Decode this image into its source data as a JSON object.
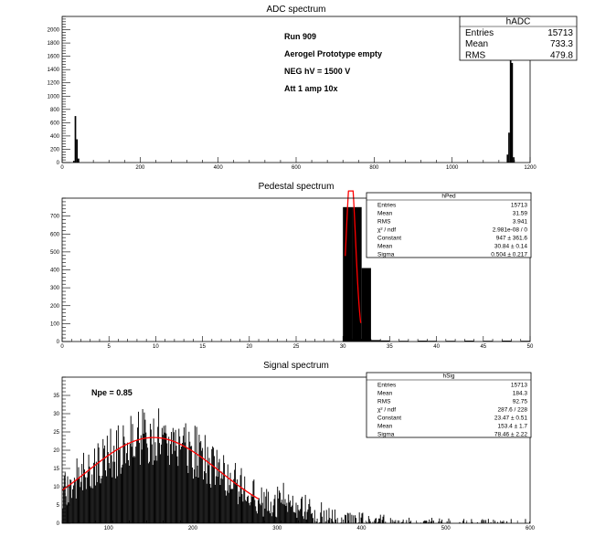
{
  "chart_data": [
    {
      "type": "bar",
      "title": "ADC spectrum",
      "xlim": [
        0,
        1200
      ],
      "ylim": [
        0,
        2200
      ],
      "xticks": [
        0,
        200,
        400,
        600,
        800,
        1000,
        1200
      ],
      "yticks": [
        0,
        200,
        400,
        600,
        800,
        1000,
        1200,
        1400,
        1600,
        1800,
        2000
      ],
      "bin_width": 4,
      "bins": [
        [
          28,
          25
        ],
        [
          32,
          700
        ],
        [
          36,
          350
        ],
        [
          40,
          60
        ],
        [
          1140,
          120
        ],
        [
          1144,
          450
        ],
        [
          1148,
          2150
        ],
        [
          1152,
          1500
        ],
        [
          1156,
          80
        ]
      ],
      "stats": {
        "name": "hADC",
        "rows": [
          {
            "label": "Entries",
            "value": "15713"
          },
          {
            "label": "Mean",
            "value": "733.3"
          },
          {
            "label": "RMS",
            "value": "479.8"
          }
        ]
      },
      "annotations": [
        "Run  909",
        "Aerogel Prototype empty",
        "NEG hV = 1500 V",
        "Att 1 amp 10x"
      ]
    },
    {
      "type": "bar",
      "title": "Pedestal spectrum",
      "xlim": [
        0,
        50
      ],
      "ylim": [
        0,
        800
      ],
      "xticks": [
        0,
        5,
        10,
        15,
        20,
        25,
        30,
        35,
        40,
        45,
        50
      ],
      "yticks": [
        0,
        100,
        200,
        300,
        400,
        500,
        600,
        700
      ],
      "bin_width": 1,
      "bins": [
        [
          30,
          750
        ],
        [
          31,
          750
        ],
        [
          32,
          410
        ],
        [
          33,
          8
        ],
        [
          34,
          6
        ],
        [
          36,
          4
        ],
        [
          38,
          5
        ],
        [
          39,
          4
        ],
        [
          41,
          4
        ],
        [
          43,
          5
        ],
        [
          45,
          4
        ],
        [
          47,
          5
        ],
        [
          49,
          4
        ]
      ],
      "fit": {
        "type": "gaus",
        "constant": 947,
        "mean": 30.84,
        "sigma": 0.504,
        "x_range": [
          30.25,
          31.9
        ]
      },
      "stats": {
        "name": "hPed",
        "rows": [
          {
            "label": "Entries",
            "value": "15713"
          },
          {
            "label": "Mean",
            "value": "31.59"
          },
          {
            "label": "RMS",
            "value": "3.941"
          },
          {
            "label": "χ² / ndf",
            "value": "2.981e-08 / 0"
          },
          {
            "label": "Constant",
            "value": "947 ± 361.6"
          },
          {
            "label": "Mean",
            "value": "30.84 ± 0.14"
          },
          {
            "label": "Sigma",
            "value": "0.504 ± 0.217"
          }
        ]
      }
    },
    {
      "type": "bar",
      "title": "Signal spectrum",
      "xlim": [
        45,
        600
      ],
      "ylim": [
        0,
        40
      ],
      "xticks": [
        100,
        200,
        300,
        400,
        500,
        600
      ],
      "yticks": [
        0,
        5,
        10,
        15,
        20,
        25,
        30,
        35
      ],
      "bin_width": 1,
      "fit": {
        "type": "gaus",
        "constant": 23.47,
        "mean": 153.4,
        "sigma": 78.46,
        "x_range": [
          45,
          278
        ]
      },
      "stats": {
        "name": "hSig",
        "rows": [
          {
            "label": "Entries",
            "value": "15713"
          },
          {
            "label": "Mean",
            "value": "184.3"
          },
          {
            "label": "RMS",
            "value": "92.75"
          },
          {
            "label": "χ² / ndf",
            "value": "287.6 / 228"
          },
          {
            "label": "Constant",
            "value": "23.47 ± 0.51"
          },
          {
            "label": "Mean",
            "value": "153.4 ± 1.7"
          },
          {
            "label": "Sigma",
            "value": "78.46 ± 2.22"
          }
        ]
      },
      "annotations": [
        "Npe = 0.85"
      ]
    }
  ],
  "colors": {
    "bars": "#000000",
    "fit": "#ff0000",
    "frame": "#000000"
  }
}
